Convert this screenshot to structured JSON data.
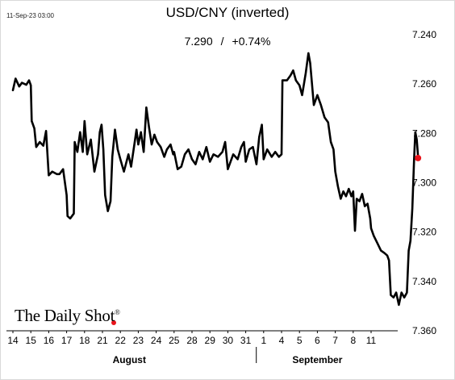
{
  "header": {
    "timestamp": "11-Sep-23 03:00",
    "title": "USD/CNY (inverted)",
    "last_value": "7.290",
    "separator": "/",
    "change": "+0.74%"
  },
  "branding": {
    "name": "The Daily Shot",
    "mark": "®"
  },
  "colors": {
    "line": "#000000",
    "last_point": "#e8141b",
    "axis": "#000000"
  },
  "chart_data": {
    "type": "line",
    "title": "USD/CNY (inverted)",
    "ylabel": "",
    "xlabel": "",
    "y_inverted": true,
    "ylim": [
      7.24,
      7.36
    ],
    "y_ticks": [
      "7.240",
      "7.260",
      "7.280",
      "7.300",
      "7.320",
      "7.340",
      "7.360"
    ],
    "y_axis_side": "right",
    "grid": false,
    "x_tick_labels": [
      "14",
      "15",
      "16",
      "17",
      "18",
      "21",
      "22",
      "23",
      "24",
      "25",
      "28",
      "29",
      "30",
      "31",
      "1",
      "4",
      "5",
      "6",
      "7",
      "8",
      "11"
    ],
    "month_labels": [
      {
        "label": "August",
        "from": "14",
        "to": "31"
      },
      {
        "label": "September",
        "from": "1",
        "to": "11"
      }
    ],
    "series": [
      {
        "values": [
          [
            14.0,
            7.2625
          ],
          [
            14.15,
            7.2578
          ],
          [
            14.35,
            7.261
          ],
          [
            14.5,
            7.2595
          ],
          [
            14.75,
            7.2603
          ],
          [
            14.9,
            7.2585
          ],
          [
            15.0,
            7.2605
          ],
          [
            15.05,
            7.275
          ],
          [
            15.2,
            7.278
          ],
          [
            15.3,
            7.2855
          ],
          [
            15.5,
            7.2835
          ],
          [
            15.7,
            7.285
          ],
          [
            15.85,
            7.279
          ],
          [
            16.0,
            7.297
          ],
          [
            16.2,
            7.2955
          ],
          [
            16.45,
            7.2965
          ],
          [
            16.6,
            7.2965
          ],
          [
            16.8,
            7.2945
          ],
          [
            17.0,
            7.305
          ],
          [
            17.05,
            7.3135
          ],
          [
            17.2,
            7.3145
          ],
          [
            17.4,
            7.3125
          ],
          [
            17.45,
            7.2835
          ],
          [
            17.6,
            7.2875
          ],
          [
            17.75,
            7.2795
          ],
          [
            17.9,
            7.2875
          ],
          [
            18.0,
            7.275
          ],
          [
            18.15,
            7.2885
          ],
          [
            18.35,
            7.2825
          ],
          [
            18.55,
            7.2955
          ],
          [
            18.75,
            7.2885
          ],
          [
            18.85,
            7.2795
          ],
          [
            18.95,
            7.2765
          ],
          [
            19.05,
            7.2865
          ],
          [
            19.15,
            7.305
          ],
          [
            19.3,
            7.3115
          ],
          [
            19.45,
            7.3075
          ],
          [
            19.55,
            7.2895
          ],
          [
            19.7,
            7.2785
          ],
          [
            19.85,
            7.2865
          ],
          [
            20.0,
            7.2905
          ],
          [
            20.2,
            7.2955
          ],
          [
            20.45,
            7.2885
          ],
          [
            20.6,
            7.2935
          ],
          [
            20.8,
            7.2835
          ],
          [
            20.9,
            7.2785
          ],
          [
            21.0,
            7.2845
          ],
          [
            21.15,
            7.2795
          ],
          [
            21.3,
            7.2875
          ],
          [
            21.45,
            7.2695
          ],
          [
            21.6,
            7.2775
          ],
          [
            21.75,
            7.2845
          ],
          [
            21.9,
            7.2805
          ],
          [
            22.05,
            7.2835
          ],
          [
            22.25,
            7.2855
          ],
          [
            22.45,
            7.2895
          ],
          [
            22.6,
            7.2865
          ],
          [
            22.8,
            7.2845
          ],
          [
            22.95,
            7.2885
          ],
          [
            23.0,
            7.2875
          ],
          [
            23.2,
            7.2945
          ],
          [
            23.4,
            7.2935
          ],
          [
            23.6,
            7.2885
          ],
          [
            23.8,
            7.2865
          ],
          [
            24.0,
            7.2905
          ],
          [
            24.2,
            7.2925
          ],
          [
            24.4,
            7.2875
          ],
          [
            24.6,
            7.2905
          ],
          [
            24.8,
            7.2855
          ],
          [
            25.0,
            7.2915
          ],
          [
            25.2,
            7.2885
          ],
          [
            25.45,
            7.2895
          ],
          [
            25.7,
            7.2875
          ],
          [
            25.85,
            7.2835
          ],
          [
            26.0,
            7.2945
          ],
          [
            26.3,
            7.2885
          ],
          [
            26.55,
            7.2905
          ],
          [
            26.75,
            7.2855
          ],
          [
            26.9,
            7.2835
          ],
          [
            27.0,
            7.2915
          ],
          [
            27.2,
            7.2865
          ],
          [
            27.4,
            7.2855
          ],
          [
            27.6,
            7.2925
          ],
          [
            27.75,
            7.2815
          ],
          [
            27.9,
            7.2765
          ],
          [
            28.0,
            7.2905
          ],
          [
            28.2,
            7.2865
          ],
          [
            28.45,
            7.2895
          ],
          [
            28.65,
            7.2875
          ],
          [
            28.85,
            7.2895
          ],
          [
            29.0,
            7.2885
          ],
          [
            29.05,
            7.2585
          ],
          [
            29.3,
            7.2585
          ],
          [
            29.5,
            7.2565
          ],
          [
            29.65,
            7.2545
          ],
          [
            29.8,
            7.2585
          ],
          [
            30.0,
            7.2605
          ],
          [
            30.15,
            7.2645
          ],
          [
            30.35,
            7.2555
          ],
          [
            30.5,
            7.2475
          ],
          [
            30.6,
            7.2515
          ],
          [
            30.8,
            7.2685
          ],
          [
            31.0,
            7.2645
          ],
          [
            31.2,
            7.2685
          ],
          [
            31.4,
            7.2735
          ],
          [
            31.6,
            7.2755
          ],
          [
            31.75,
            7.2835
          ],
          [
            31.9,
            7.2865
          ],
          [
            32.0,
            7.2955
          ],
          [
            32.15,
            7.3015
          ],
          [
            32.3,
            7.3065
          ],
          [
            32.45,
            7.3035
          ],
          [
            32.6,
            7.3055
          ],
          [
            32.75,
            7.3025
          ],
          [
            32.9,
            7.3055
          ],
          [
            33.0,
            7.3035
          ],
          [
            33.1,
            7.3195
          ],
          [
            33.2,
            7.3065
          ],
          [
            33.35,
            7.3075
          ],
          [
            33.5,
            7.3045
          ],
          [
            33.65,
            7.3095
          ],
          [
            33.8,
            7.3085
          ],
          [
            33.95,
            7.3145
          ],
          [
            34.0,
            7.3185
          ],
          [
            34.15,
            7.3215
          ],
          [
            34.35,
            7.3245
          ],
          [
            34.55,
            7.3275
          ],
          [
            34.75,
            7.3285
          ],
          [
            34.9,
            7.3295
          ],
          [
            35.0,
            7.3315
          ],
          [
            35.1,
            7.3455
          ],
          [
            35.25,
            7.3465
          ],
          [
            35.4,
            7.3445
          ],
          [
            35.55,
            7.3495
          ],
          [
            35.7,
            7.3445
          ],
          [
            35.85,
            7.3465
          ],
          [
            36.0,
            7.3445
          ],
          [
            36.1,
            7.3275
          ],
          [
            36.2,
            7.3235
          ],
          [
            36.3,
            7.3105
          ],
          [
            36.4,
            7.2905
          ],
          [
            36.47,
            7.2795
          ],
          [
            36.55,
            7.2825
          ],
          [
            36.62,
            7.2895
          ]
        ]
      }
    ],
    "last_point": {
      "label": "11",
      "value": 7.29
    }
  }
}
